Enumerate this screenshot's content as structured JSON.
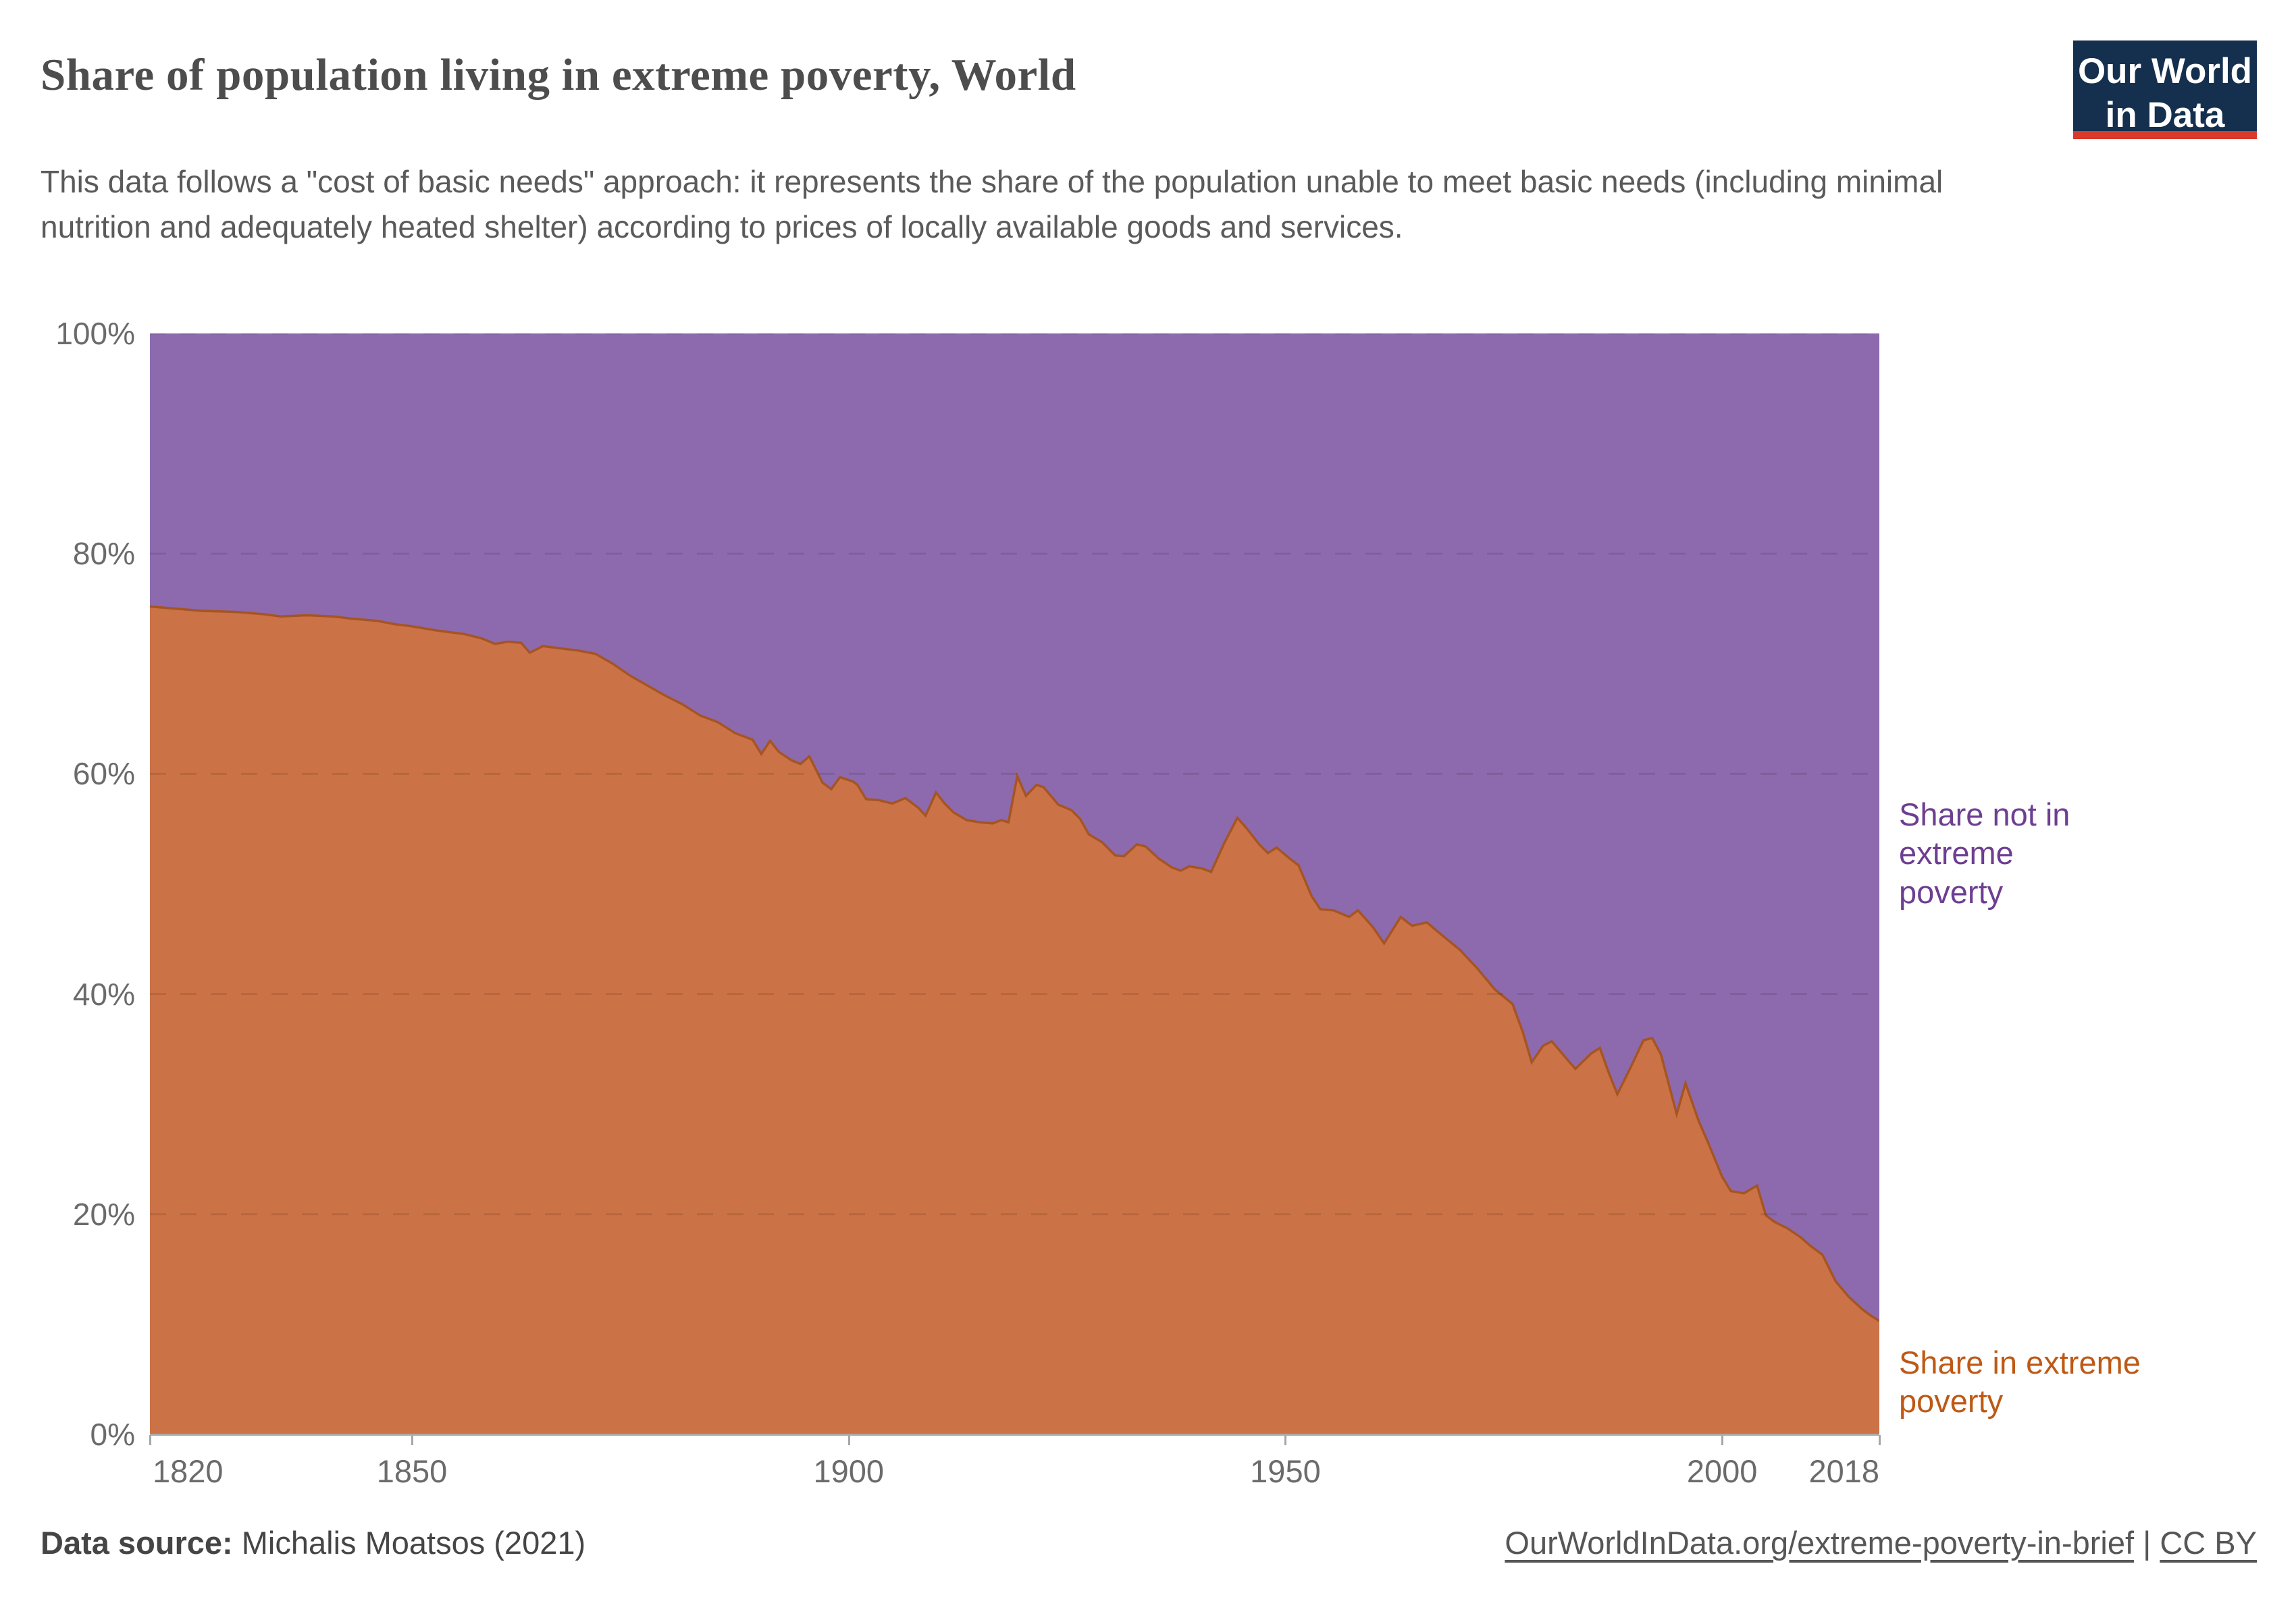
{
  "header": {
    "title": "Share of population living in extreme poverty, World",
    "subtitle": "This data follows a \"cost of basic needs\" approach: it represents the share of the population unable to meet basic needs (including minimal nutrition and adequately heated shelter) according to prices of locally available goods and services.",
    "logo": {
      "line1": "Our World",
      "line2": "in Data"
    }
  },
  "annotations": {
    "not_poverty_label": "Share not in extreme poverty",
    "poverty_label": "Share in extreme poverty"
  },
  "footer": {
    "source_label": "Data source:",
    "source_value": " Michalis Moatsos (2021)",
    "link": "OurWorldInData.org/extreme-poverty-in-brief",
    "separator": " | ",
    "license": "CC BY"
  },
  "colors": {
    "poverty_fill": "#cb7346",
    "poverty_line": "#a65422",
    "not_poverty_fill": "#8d6aae",
    "not_poverty_text": "#6d3e91",
    "poverty_text": "#be5915",
    "gridline": "rgba(0,0,0,0.10)",
    "axis": "#ababab",
    "logo_bg": "#14304e",
    "logo_red": "#d93a2b"
  },
  "chart_data": {
    "type": "area",
    "stacked": true,
    "title": "Share of population living in extreme poverty, World",
    "xlabel": "",
    "ylabel": "",
    "x_axis": {
      "range": [
        1820,
        2018
      ],
      "ticks": [
        1820,
        1850,
        1900,
        1950,
        2000,
        2018
      ]
    },
    "y_axis": {
      "range": [
        0,
        100
      ],
      "ticks": [
        "0%",
        "20%",
        "40%",
        "60%",
        "80%",
        "100%"
      ],
      "gridlines": "dashed, horizontal only"
    },
    "legend_position": "labels at right edge of plot",
    "series": [
      {
        "name": "Share in extreme poverty",
        "color": "#be5915",
        "points": [
          [
            1820,
            75.2
          ],
          [
            1823,
            75.0
          ],
          [
            1826,
            74.8
          ],
          [
            1830,
            74.7
          ],
          [
            1833,
            74.5
          ],
          [
            1835,
            74.3
          ],
          [
            1838,
            74.4
          ],
          [
            1841,
            74.3
          ],
          [
            1843,
            74.1
          ],
          [
            1846,
            73.9
          ],
          [
            1848,
            73.6
          ],
          [
            1850,
            73.4
          ],
          [
            1853,
            73.0
          ],
          [
            1856,
            72.7
          ],
          [
            1858,
            72.3
          ],
          [
            1859.5,
            71.8
          ],
          [
            1861,
            72.0
          ],
          [
            1862.5,
            71.9
          ],
          [
            1863.5,
            71.0
          ],
          [
            1865,
            71.6
          ],
          [
            1867,
            71.4
          ],
          [
            1869,
            71.2
          ],
          [
            1871,
            70.9
          ],
          [
            1873,
            70.0
          ],
          [
            1875,
            68.9
          ],
          [
            1877,
            68.0
          ],
          [
            1879,
            67.1
          ],
          [
            1881,
            66.3
          ],
          [
            1883,
            65.3
          ],
          [
            1885,
            64.7
          ],
          [
            1887,
            63.7
          ],
          [
            1889,
            63.1
          ],
          [
            1890,
            61.8
          ],
          [
            1891,
            63.0
          ],
          [
            1892,
            62.0
          ],
          [
            1893.5,
            61.2
          ],
          [
            1894.5,
            60.9
          ],
          [
            1895.5,
            61.6
          ],
          [
            1897,
            59.2
          ],
          [
            1898,
            58.6
          ],
          [
            1899,
            59.7
          ],
          [
            1900.5,
            59.3
          ],
          [
            1901,
            59.0
          ],
          [
            1902,
            57.7
          ],
          [
            1903.5,
            57.6
          ],
          [
            1905,
            57.3
          ],
          [
            1906.5,
            57.8
          ],
          [
            1908,
            56.9
          ],
          [
            1908.8,
            56.2
          ],
          [
            1910,
            58.3
          ],
          [
            1911,
            57.3
          ],
          [
            1912,
            56.5
          ],
          [
            1913.5,
            55.8
          ],
          [
            1915,
            55.6
          ],
          [
            1916.5,
            55.5
          ],
          [
            1917.5,
            55.8
          ],
          [
            1918.3,
            55.6
          ],
          [
            1919.3,
            59.8
          ],
          [
            1920.3,
            58.0
          ],
          [
            1921.5,
            59.0
          ],
          [
            1922.3,
            58.8
          ],
          [
            1924,
            57.2
          ],
          [
            1925.5,
            56.7
          ],
          [
            1926.5,
            55.9
          ],
          [
            1927.5,
            54.5
          ],
          [
            1929,
            53.8
          ],
          [
            1930.5,
            52.6
          ],
          [
            1931.5,
            52.5
          ],
          [
            1933,
            53.6
          ],
          [
            1934,
            53.4
          ],
          [
            1935.5,
            52.3
          ],
          [
            1937,
            51.5
          ],
          [
            1938,
            51.2
          ],
          [
            1939,
            51.6
          ],
          [
            1940.5,
            51.4
          ],
          [
            1941.5,
            51.1
          ],
          [
            1943,
            53.7
          ],
          [
            1944.5,
            56.0
          ],
          [
            1945.5,
            55.1
          ],
          [
            1947,
            53.6
          ],
          [
            1948,
            52.8
          ],
          [
            1949,
            53.3
          ],
          [
            1950.5,
            52.3
          ],
          [
            1951.5,
            51.7
          ],
          [
            1953,
            48.9
          ],
          [
            1954,
            47.7
          ],
          [
            1955.5,
            47.6
          ],
          [
            1957.3,
            47.0
          ],
          [
            1958.3,
            47.6
          ],
          [
            1960,
            46.1
          ],
          [
            1961.3,
            44.6
          ],
          [
            1963.2,
            47.0
          ],
          [
            1964.5,
            46.2
          ],
          [
            1966.2,
            46.5
          ],
          [
            1968,
            45.3
          ],
          [
            1970,
            44.0
          ],
          [
            1972,
            42.3
          ],
          [
            1974,
            40.4
          ],
          [
            1976,
            39.1
          ],
          [
            1977.2,
            36.5
          ],
          [
            1978.2,
            33.8
          ],
          [
            1979.5,
            35.3
          ],
          [
            1980.5,
            35.7
          ],
          [
            1982,
            34.3
          ],
          [
            1983.2,
            33.2
          ],
          [
            1985,
            34.6
          ],
          [
            1986,
            35.1
          ],
          [
            1987,
            32.9
          ],
          [
            1988,
            30.9
          ],
          [
            1989.5,
            33.3
          ],
          [
            1991,
            35.8
          ],
          [
            1992,
            36.0
          ],
          [
            1993,
            34.5
          ],
          [
            1994.8,
            29.1
          ],
          [
            1995.8,
            31.9
          ],
          [
            1997.3,
            28.5
          ],
          [
            1998.5,
            26.3
          ],
          [
            2000,
            23.4
          ],
          [
            2001,
            22.1
          ],
          [
            2002.5,
            21.9
          ],
          [
            2004,
            22.6
          ],
          [
            2005,
            19.9
          ],
          [
            2006,
            19.3
          ],
          [
            2007.5,
            18.7
          ],
          [
            2009,
            17.9
          ],
          [
            2010,
            17.2
          ],
          [
            2011.5,
            16.3
          ],
          [
            2013,
            13.9
          ],
          [
            2014.5,
            12.5
          ],
          [
            2016,
            11.4
          ],
          [
            2017,
            10.8
          ],
          [
            2018,
            10.3
          ]
        ]
      },
      {
        "name": "Share not in extreme poverty",
        "color": "#6d3e91",
        "derived": "100 minus 'Share in extreme poverty' (stacked complement to 100%)"
      }
    ]
  }
}
